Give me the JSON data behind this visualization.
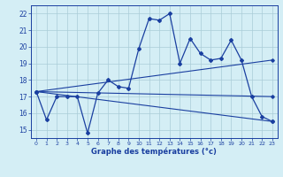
{
  "title": "",
  "xlabel": "Graphe des températures (°c)",
  "ylabel": "",
  "background_color": "#d4eef5",
  "grid_color": "#aaccd8",
  "line_color": "#1a3fa0",
  "ylim": [
    14.5,
    22.5
  ],
  "xlim": [
    -0.5,
    23.5
  ],
  "yticks": [
    15,
    16,
    17,
    18,
    19,
    20,
    21,
    22
  ],
  "xticks": [
    0,
    1,
    2,
    3,
    4,
    5,
    6,
    7,
    8,
    9,
    10,
    11,
    12,
    13,
    14,
    15,
    16,
    17,
    18,
    19,
    20,
    21,
    22,
    23
  ],
  "series": [
    {
      "x": [
        0,
        1,
        2,
        3,
        4,
        5,
        6,
        7,
        8,
        9,
        10,
        11,
        12,
        13,
        14,
        15,
        16,
        17,
        18,
        19,
        20,
        21,
        22,
        23
      ],
      "y": [
        17.3,
        15.6,
        17.0,
        17.0,
        17.0,
        14.8,
        17.2,
        18.0,
        17.6,
        17.5,
        19.9,
        21.7,
        21.6,
        22.0,
        19.0,
        20.5,
        19.6,
        19.2,
        19.3,
        20.4,
        19.2,
        17.0,
        15.8,
        15.5
      ]
    },
    {
      "x": [
        0,
        23
      ],
      "y": [
        17.3,
        15.5
      ]
    },
    {
      "x": [
        0,
        23
      ],
      "y": [
        17.3,
        19.2
      ]
    },
    {
      "x": [
        0,
        23
      ],
      "y": [
        17.3,
        17.0
      ]
    }
  ]
}
